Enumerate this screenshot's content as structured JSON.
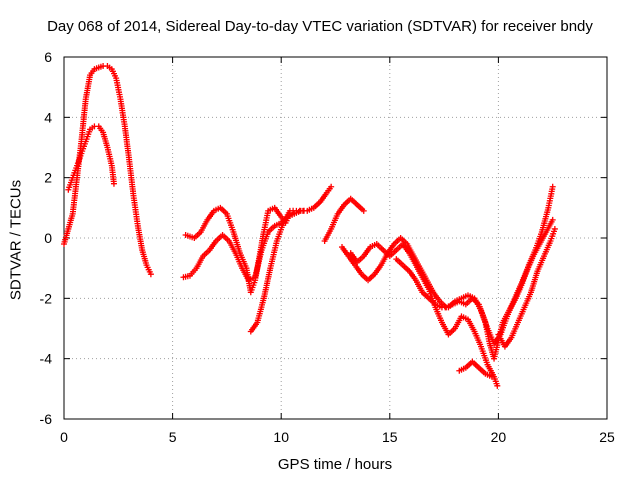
{
  "chart_data": {
    "type": "scatter",
    "title": "Day 068 of 2014, Sidereal Day-to-day VTEC variation (SDTVAR) for receiver bndy",
    "xlabel": "GPS time / hours",
    "ylabel": "SDTVAR / TECUs",
    "xlim": [
      0,
      25
    ],
    "ylim": [
      -6,
      6
    ],
    "xticks": [
      0,
      5,
      10,
      15,
      20,
      25
    ],
    "yticks": [
      -6,
      -4,
      -2,
      0,
      2,
      4,
      6
    ],
    "grid": true,
    "marker": "+",
    "color": "#ff0000",
    "series": [
      {
        "points": [
          [
            0.0,
            -0.2
          ],
          [
            0.2,
            0.3
          ],
          [
            0.4,
            0.8
          ],
          [
            0.6,
            2.0
          ],
          [
            0.8,
            3.2
          ],
          [
            1.0,
            4.6
          ],
          [
            1.2,
            5.4
          ],
          [
            1.4,
            5.6
          ],
          [
            1.6,
            5.65
          ],
          [
            1.8,
            5.7
          ],
          [
            2.0,
            5.7
          ],
          [
            2.2,
            5.6
          ],
          [
            2.4,
            5.3
          ],
          [
            2.6,
            4.6
          ],
          [
            2.8,
            3.7
          ],
          [
            3.0,
            2.6
          ],
          [
            3.2,
            1.4
          ],
          [
            3.4,
            0.4
          ],
          [
            3.6,
            -0.4
          ],
          [
            3.8,
            -0.9
          ],
          [
            4.0,
            -1.2
          ]
        ]
      },
      {
        "points": [
          [
            0.2,
            1.6
          ],
          [
            0.4,
            2.0
          ],
          [
            0.6,
            2.4
          ],
          [
            0.8,
            2.8
          ],
          [
            1.0,
            3.2
          ],
          [
            1.2,
            3.6
          ],
          [
            1.4,
            3.7
          ],
          [
            1.6,
            3.7
          ],
          [
            1.8,
            3.5
          ],
          [
            2.0,
            3.0
          ],
          [
            2.2,
            2.4
          ],
          [
            2.3,
            1.8
          ]
        ]
      },
      {
        "points": [
          [
            5.5,
            -1.3
          ],
          [
            5.8,
            -1.25
          ],
          [
            6.1,
            -1.0
          ],
          [
            6.4,
            -0.6
          ],
          [
            6.7,
            -0.4
          ],
          [
            7.0,
            -0.1
          ],
          [
            7.3,
            0.1
          ],
          [
            7.6,
            -0.1
          ],
          [
            7.9,
            -0.5
          ],
          [
            8.2,
            -1.0
          ],
          [
            8.5,
            -1.4
          ],
          [
            8.8,
            -1.3
          ],
          [
            9.1,
            -0.4
          ],
          [
            9.4,
            0.2
          ],
          [
            9.7,
            0.4
          ],
          [
            10.0,
            0.5
          ],
          [
            10.3,
            0.7
          ],
          [
            10.6,
            0.8
          ],
          [
            10.9,
            0.9
          ],
          [
            11.2,
            0.9
          ],
          [
            11.5,
            1.0
          ],
          [
            11.8,
            1.2
          ],
          [
            12.1,
            1.5
          ],
          [
            12.3,
            1.7
          ]
        ]
      },
      {
        "points": [
          [
            5.6,
            0.1
          ],
          [
            6.0,
            0.0
          ],
          [
            6.3,
            0.2
          ],
          [
            6.6,
            0.6
          ],
          [
            6.9,
            0.9
          ],
          [
            7.2,
            1.0
          ],
          [
            7.5,
            0.8
          ],
          [
            7.8,
            0.2
          ],
          [
            8.1,
            -0.5
          ],
          [
            8.4,
            -1.0
          ],
          [
            8.6,
            -1.8
          ],
          [
            8.8,
            -1.4
          ],
          [
            9.0,
            -0.6
          ],
          [
            9.2,
            0.2
          ],
          [
            9.4,
            0.9
          ],
          [
            9.7,
            1.0
          ],
          [
            10.0,
            0.7
          ],
          [
            10.2,
            0.5
          ],
          [
            10.4,
            0.8
          ]
        ]
      },
      {
        "points": [
          [
            8.6,
            -3.1
          ],
          [
            8.9,
            -2.8
          ],
          [
            9.2,
            -2.0
          ],
          [
            9.5,
            -1.0
          ],
          [
            9.8,
            -0.1
          ],
          [
            10.1,
            0.5
          ],
          [
            10.4,
            0.9
          ],
          [
            10.7,
            0.9
          ],
          [
            11.0,
            0.9
          ]
        ]
      },
      {
        "points": [
          [
            12.0,
            -0.1
          ],
          [
            12.3,
            0.3
          ],
          [
            12.6,
            0.8
          ],
          [
            12.9,
            1.1
          ],
          [
            13.2,
            1.3
          ],
          [
            13.5,
            1.1
          ],
          [
            13.8,
            0.9
          ]
        ]
      },
      {
        "points": [
          [
            12.8,
            -0.3
          ],
          [
            13.1,
            -0.6
          ],
          [
            13.4,
            -0.9
          ],
          [
            13.7,
            -1.2
          ],
          [
            14.0,
            -1.4
          ],
          [
            14.3,
            -1.2
          ],
          [
            14.6,
            -0.9
          ],
          [
            14.9,
            -0.5
          ],
          [
            15.2,
            -0.2
          ],
          [
            15.5,
            0.0
          ],
          [
            15.8,
            -0.2
          ],
          [
            16.1,
            -0.6
          ],
          [
            16.4,
            -1.0
          ],
          [
            16.7,
            -1.4
          ],
          [
            17.0,
            -1.8
          ],
          [
            17.3,
            -2.1
          ],
          [
            17.6,
            -2.3
          ],
          [
            17.9,
            -2.2
          ],
          [
            18.2,
            -2.1
          ],
          [
            18.5,
            -2.2
          ],
          [
            18.8,
            -2.0
          ],
          [
            19.1,
            -2.2
          ],
          [
            19.4,
            -2.8
          ],
          [
            19.6,
            -3.5
          ],
          [
            19.8,
            -4.0
          ],
          [
            20.0,
            -3.4
          ],
          [
            20.2,
            -2.8
          ],
          [
            20.5,
            -2.4
          ],
          [
            20.8,
            -2.0
          ],
          [
            21.1,
            -1.5
          ],
          [
            21.4,
            -0.9
          ],
          [
            21.7,
            -0.4
          ],
          [
            22.0,
            0.2
          ],
          [
            22.3,
            1.0
          ],
          [
            22.5,
            1.7
          ]
        ]
      },
      {
        "points": [
          [
            13.2,
            -0.5
          ],
          [
            13.5,
            -0.8
          ],
          [
            13.8,
            -0.6
          ],
          [
            14.1,
            -0.3
          ],
          [
            14.4,
            -0.2
          ],
          [
            14.7,
            -0.4
          ],
          [
            15.0,
            -0.6
          ],
          [
            15.3,
            -0.4
          ],
          [
            15.6,
            -0.2
          ],
          [
            15.9,
            -0.5
          ],
          [
            16.2,
            -0.9
          ],
          [
            16.5,
            -1.3
          ],
          [
            16.8,
            -1.7
          ],
          [
            17.1,
            -2.3
          ],
          [
            17.4,
            -2.8
          ],
          [
            17.7,
            -3.2
          ],
          [
            18.0,
            -3.0
          ],
          [
            18.3,
            -2.6
          ],
          [
            18.6,
            -2.7
          ],
          [
            18.9,
            -3.1
          ],
          [
            19.2,
            -3.6
          ],
          [
            19.5,
            -4.2
          ],
          [
            19.8,
            -4.6
          ],
          [
            19.95,
            -4.9
          ]
        ]
      },
      {
        "points": [
          [
            15.3,
            -0.7
          ],
          [
            15.6,
            -0.9
          ],
          [
            15.9,
            -1.1
          ],
          [
            16.2,
            -1.4
          ],
          [
            16.5,
            -1.8
          ],
          [
            16.8,
            -2.0
          ],
          [
            17.1,
            -2.2
          ],
          [
            17.4,
            -2.3
          ],
          [
            17.7,
            -2.3
          ],
          [
            18.0,
            -2.1
          ],
          [
            18.3,
            -2.0
          ],
          [
            18.6,
            -1.9
          ],
          [
            18.9,
            -2.0
          ],
          [
            19.2,
            -2.4
          ],
          [
            19.5,
            -3.0
          ],
          [
            19.8,
            -3.5
          ],
          [
            20.1,
            -3.2
          ],
          [
            20.4,
            -2.6
          ],
          [
            20.7,
            -2.1
          ],
          [
            21.0,
            -1.6
          ],
          [
            21.3,
            -1.1
          ],
          [
            21.6,
            -0.6
          ],
          [
            21.9,
            -0.2
          ],
          [
            22.2,
            0.2
          ],
          [
            22.5,
            0.6
          ]
        ]
      },
      {
        "points": [
          [
            18.2,
            -4.4
          ],
          [
            18.5,
            -4.3
          ],
          [
            18.8,
            -4.1
          ],
          [
            19.1,
            -4.3
          ],
          [
            19.4,
            -4.5
          ],
          [
            19.7,
            -4.6
          ]
        ]
      },
      {
        "points": [
          [
            20.0,
            -3.2
          ],
          [
            20.3,
            -3.6
          ],
          [
            20.6,
            -3.3
          ],
          [
            20.9,
            -2.8
          ],
          [
            21.2,
            -2.3
          ],
          [
            21.5,
            -1.8
          ],
          [
            21.8,
            -1.1
          ],
          [
            22.1,
            -0.6
          ],
          [
            22.4,
            -0.1
          ],
          [
            22.6,
            0.3
          ]
        ]
      }
    ]
  }
}
